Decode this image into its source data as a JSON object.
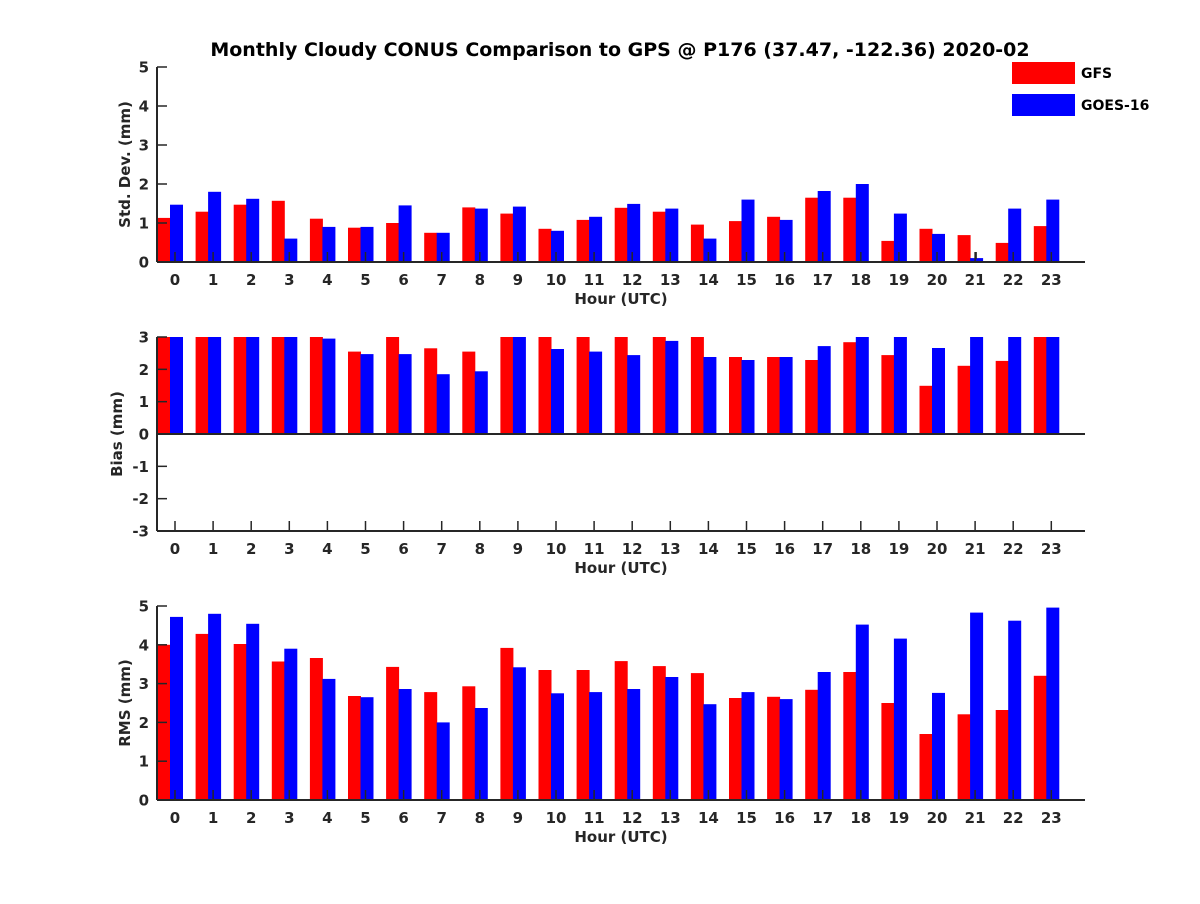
{
  "chart_data": {
    "type": "bar",
    "title": "Monthly Cloudy CONUS Comparison to GPS @ P176 (37.47, -122.36) 2020-02",
    "legend": {
      "placement": "top-right",
      "entries": [
        {
          "name": "GFS",
          "color": "#ff0000"
        },
        {
          "name": "GOES-16",
          "color": "#0000ff"
        }
      ]
    },
    "categories": [
      "0",
      "1",
      "2",
      "3",
      "4",
      "5",
      "6",
      "7",
      "8",
      "9",
      "10",
      "11",
      "12",
      "13",
      "14",
      "15",
      "16",
      "17",
      "18",
      "19",
      "20",
      "21",
      "22",
      "23"
    ],
    "panels": [
      {
        "name": "std-dev",
        "ylabel": "Std. Dev. (mm)",
        "xlabel": "Hour (UTC)",
        "ylim": [
          0,
          5
        ],
        "yticks": [
          "0",
          "1",
          "2",
          "3",
          "4",
          "5"
        ],
        "series": [
          {
            "name": "GFS",
            "color": "#ff0000",
            "values": [
              1.13,
              1.29,
              1.47,
              1.57,
              1.11,
              0.88,
              1.0,
              0.75,
              1.4,
              1.24,
              0.85,
              1.08,
              1.39,
              1.29,
              0.96,
              1.05,
              1.16,
              1.65,
              1.65,
              0.54,
              0.85,
              0.69,
              0.49,
              0.92
            ]
          },
          {
            "name": "GOES-16",
            "color": "#0000ff",
            "values": [
              1.47,
              1.8,
              1.62,
              0.6,
              0.9,
              0.9,
              1.45,
              0.75,
              1.37,
              1.42,
              0.8,
              1.16,
              1.49,
              1.37,
              0.6,
              1.6,
              1.08,
              1.82,
              2.0,
              1.24,
              0.72,
              0.1,
              1.37,
              1.6
            ]
          }
        ]
      },
      {
        "name": "bias",
        "ylabel": "Bias (mm)",
        "xlabel": "Hour (UTC)",
        "ylim": [
          -3,
          3
        ],
        "yticks": [
          "-3",
          "-2",
          "-1",
          "0",
          "1",
          "2",
          "3"
        ],
        "series": [
          {
            "name": "GFS",
            "color": "#ff0000",
            "values": [
              3.0,
              3.0,
              3.0,
              3.0,
              3.0,
              2.55,
              3.0,
              2.65,
              2.55,
              3.0,
              3.0,
              3.0,
              3.0,
              3.0,
              3.0,
              2.38,
              2.38,
              2.29,
              2.84,
              2.44,
              1.49,
              2.11,
              2.26,
              3.0
            ]
          },
          {
            "name": "GOES-16",
            "color": "#0000ff",
            "values": [
              3.0,
              3.0,
              3.0,
              3.0,
              2.95,
              2.47,
              2.47,
              1.85,
              1.94,
              3.0,
              2.63,
              2.55,
              2.44,
              2.88,
              2.38,
              2.29,
              2.38,
              2.72,
              3.0,
              3.0,
              2.66,
              3.0,
              3.0,
              3.0
            ]
          }
        ]
      },
      {
        "name": "rms",
        "ylabel": "RMS (mm)",
        "xlabel": "Hour (UTC)",
        "ylim": [
          0,
          5
        ],
        "yticks": [
          "0",
          "1",
          "2",
          "3",
          "4",
          "5"
        ],
        "series": [
          {
            "name": "GFS",
            "color": "#ff0000",
            "values": [
              4.0,
              4.28,
              4.02,
              3.57,
              3.66,
              2.68,
              3.43,
              2.78,
              2.93,
              3.92,
              3.35,
              3.35,
              3.58,
              3.45,
              3.27,
              2.63,
              2.66,
              2.84,
              3.3,
              2.5,
              1.7,
              2.21,
              2.32,
              3.2
            ]
          },
          {
            "name": "GOES-16",
            "color": "#0000ff",
            "values": [
              4.72,
              4.8,
              4.54,
              3.9,
              3.12,
              2.65,
              2.86,
              2.0,
              2.37,
              3.42,
              2.75,
              2.78,
              2.86,
              3.17,
              2.47,
              2.78,
              2.6,
              3.3,
              4.52,
              4.16,
              2.76,
              4.83,
              4.62,
              4.96
            ]
          }
        ]
      }
    ]
  }
}
